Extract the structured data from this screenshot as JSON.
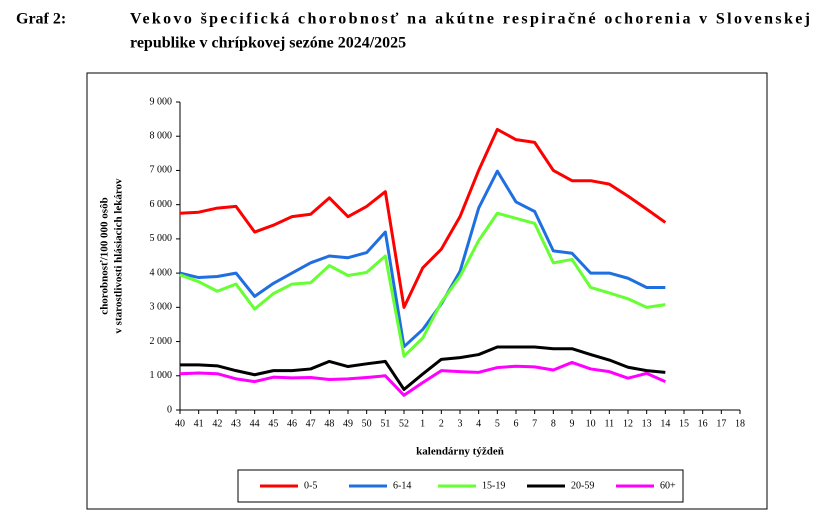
{
  "chart_data": {
    "type": "line",
    "label": "Graf 2:",
    "title": [
      "Vekovo špecifická chorobnosť na akútne respiračné ochorenia v Slovenskej",
      "republike v chrípkovej sezóne 2024/2025"
    ],
    "xlabel": "kalendárny týždeň",
    "ylabel": [
      "chorobnosť/100 000 osôb",
      "v starostlivosti hlásiacich lekárov"
    ],
    "categories": [
      "40",
      "41",
      "42",
      "43",
      "44",
      "45",
      "46",
      "47",
      "48",
      "49",
      "50",
      "51",
      "52",
      "1",
      "2",
      "3",
      "4",
      "5",
      "6",
      "7",
      "8",
      "9",
      "10",
      "11",
      "12",
      "13",
      "14",
      "15",
      "16",
      "17",
      "18"
    ],
    "ylim": [
      0,
      9000
    ],
    "yticks": [
      0,
      {
        "value": 1000,
        "label": "1 000"
      },
      {
        "value": 2000,
        "label": "2 000"
      },
      {
        "value": 3000,
        "label": "3 000"
      },
      {
        "value": 4000,
        "label": "4 000"
      },
      {
        "value": 5000,
        "label": "5 000"
      },
      {
        "value": 6000,
        "label": "6 000"
      },
      {
        "value": 7000,
        "label": "7 000"
      },
      {
        "value": 8000,
        "label": "8 000"
      },
      {
        "value": 9000,
        "label": "9 000"
      }
    ],
    "grid": false,
    "legend": "bottom",
    "series": [
      {
        "name": "0-5",
        "color": "#ff0000",
        "values": [
          5750,
          5780,
          5900,
          5950,
          5200,
          5400,
          5650,
          5720,
          6200,
          5650,
          5950,
          6380,
          3000,
          4150,
          4700,
          5650,
          7000,
          8200,
          7900,
          7820,
          7000,
          6700,
          6700,
          6600,
          6250,
          5870,
          5480,
          null,
          null,
          null,
          null
        ]
      },
      {
        "name": "6-14",
        "color": "#1f6fe0",
        "values": [
          4000,
          3870,
          3900,
          4000,
          3320,
          3700,
          4000,
          4300,
          4500,
          4450,
          4600,
          5200,
          1850,
          2350,
          3100,
          4050,
          5900,
          6980,
          6080,
          5800,
          4650,
          4580,
          4000,
          4000,
          3850,
          3580,
          3580,
          null,
          null,
          null,
          null
        ]
      },
      {
        "name": "15-19",
        "color": "#66ff33",
        "values": [
          3950,
          3750,
          3470,
          3680,
          2950,
          3400,
          3680,
          3720,
          4220,
          3930,
          4020,
          4500,
          1570,
          2100,
          3150,
          3900,
          4950,
          5750,
          5600,
          5450,
          4300,
          4400,
          3580,
          3420,
          3250,
          3000,
          3080,
          null,
          null,
          null,
          null
        ]
      },
      {
        "name": "20-59",
        "color": "#000000",
        "values": [
          1320,
          1320,
          1290,
          1150,
          1030,
          1150,
          1150,
          1200,
          1420,
          1270,
          1350,
          1420,
          600,
          1050,
          1480,
          1530,
          1620,
          1840,
          1840,
          1840,
          1790,
          1790,
          1620,
          1460,
          1250,
          1150,
          1100,
          null,
          null,
          null,
          null
        ]
      },
      {
        "name": "60+",
        "color": "#ff00ff",
        "values": [
          1060,
          1080,
          1060,
          910,
          830,
          960,
          940,
          950,
          890,
          910,
          950,
          1000,
          430,
          800,
          1150,
          1120,
          1100,
          1240,
          1280,
          1260,
          1170,
          1390,
          1200,
          1120,
          930,
          1070,
          830,
          null,
          null,
          null,
          null
        ]
      }
    ]
  }
}
